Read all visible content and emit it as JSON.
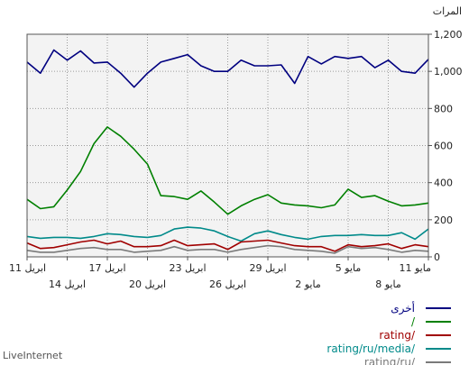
{
  "chart_data": {
    "type": "line",
    "ylabel": "المرات",
    "ylim": [
      0,
      1200
    ],
    "yticks": [
      "0",
      "200",
      "400",
      "600",
      "800",
      "1,000",
      "1,200"
    ],
    "grid": true,
    "legend_position": "bottom-right",
    "x_labels_row1": [
      "11 مايو",
      "5 مايو",
      "29 ابريل",
      "23 ابريل",
      "17 ابريل",
      "11 ابريل"
    ],
    "x_labels_row2": [
      "8 مايو",
      "2 مايو",
      "26 ابريل",
      "20 ابريل",
      "14 ابريل"
    ],
    "series": [
      {
        "name": "أخرى",
        "color": "#000080",
        "values": [
          1065,
          990,
          1000,
          1060,
          1020,
          1080,
          1070,
          1080,
          1040,
          1080,
          935,
          1035,
          1030,
          1030,
          1060,
          1000,
          1000,
          1030,
          1090,
          1070,
          1050,
          990,
          915,
          990,
          1050,
          1045,
          1110,
          1060,
          1115,
          990,
          1050
        ]
      },
      {
        "name": "/",
        "color": "#008000",
        "values": [
          290,
          280,
          275,
          300,
          330,
          320,
          365,
          280,
          265,
          275,
          280,
          290,
          335,
          310,
          275,
          230,
          295,
          355,
          310,
          325,
          330,
          500,
          580,
          650,
          700,
          610,
          460,
          360,
          270,
          260,
          310
        ]
      },
      {
        "name": "rating/",
        "color": "#a00000",
        "values": [
          55,
          65,
          45,
          70,
          60,
          55,
          65,
          30,
          55,
          55,
          60,
          75,
          90,
          85,
          80,
          40,
          70,
          65,
          60,
          90,
          60,
          55,
          55,
          85,
          70,
          90,
          80,
          65,
          50,
          45,
          75
        ]
      },
      {
        "name": "rating/ru/media/",
        "color": "#008a8a",
        "values": [
          150,
          95,
          130,
          115,
          115,
          120,
          115,
          115,
          110,
          95,
          105,
          120,
          140,
          125,
          85,
          110,
          140,
          155,
          160,
          150,
          115,
          105,
          110,
          120,
          125,
          110,
          100,
          105,
          105,
          100,
          110
        ]
      },
      {
        "name": "rating/ru/",
        "color": "#7a7a7a",
        "values": [
          30,
          35,
          25,
          40,
          50,
          45,
          55,
          20,
          30,
          35,
          40,
          55,
          60,
          50,
          40,
          25,
          40,
          40,
          35,
          55,
          35,
          30,
          25,
          40,
          40,
          50,
          45,
          35,
          25,
          25,
          35
        ]
      }
    ]
  },
  "brand": "LiveInternet"
}
